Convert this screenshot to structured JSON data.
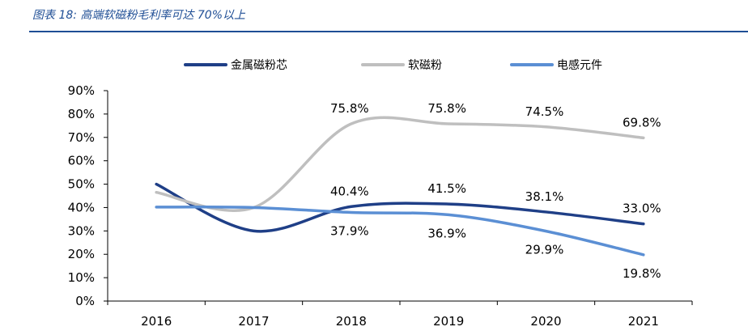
{
  "header": {
    "title": "图表 18:  高端软磁粉毛利率可达 70%以上"
  },
  "chart_data": {
    "type": "line",
    "title": "",
    "xlabel": "",
    "ylabel": "",
    "categories": [
      "2016",
      "2017",
      "2018",
      "2019",
      "2020",
      "2021"
    ],
    "y_ticks": [
      "0%",
      "10%",
      "20%",
      "30%",
      "40%",
      "50%",
      "60%",
      "70%",
      "80%",
      "90%"
    ],
    "ylim": [
      0,
      90
    ],
    "grid": false,
    "legend_position": "top",
    "series": [
      {
        "name": "金属磁粉芯",
        "color": "#1f3f87",
        "values": [
          50.0,
          30.0,
          40.4,
          41.5,
          38.1,
          33.0
        ],
        "labels": [
          "",
          "",
          "40.4%",
          "41.5%",
          "38.1%",
          "33.0%"
        ]
      },
      {
        "name": "软磁粉",
        "color": "#bfbfbf",
        "values": [
          46.5,
          40.0,
          75.8,
          75.8,
          74.5,
          69.8
        ],
        "labels": [
          "",
          "",
          "75.8%",
          "75.8%",
          "74.5%",
          "69.8%"
        ]
      },
      {
        "name": "电感元件",
        "color": "#5b8fd4",
        "values": [
          40.2,
          40.0,
          37.9,
          36.9,
          29.9,
          19.8
        ],
        "labels": [
          "",
          "",
          "37.9%",
          "36.9%",
          "29.9%",
          "19.8%"
        ]
      }
    ]
  }
}
